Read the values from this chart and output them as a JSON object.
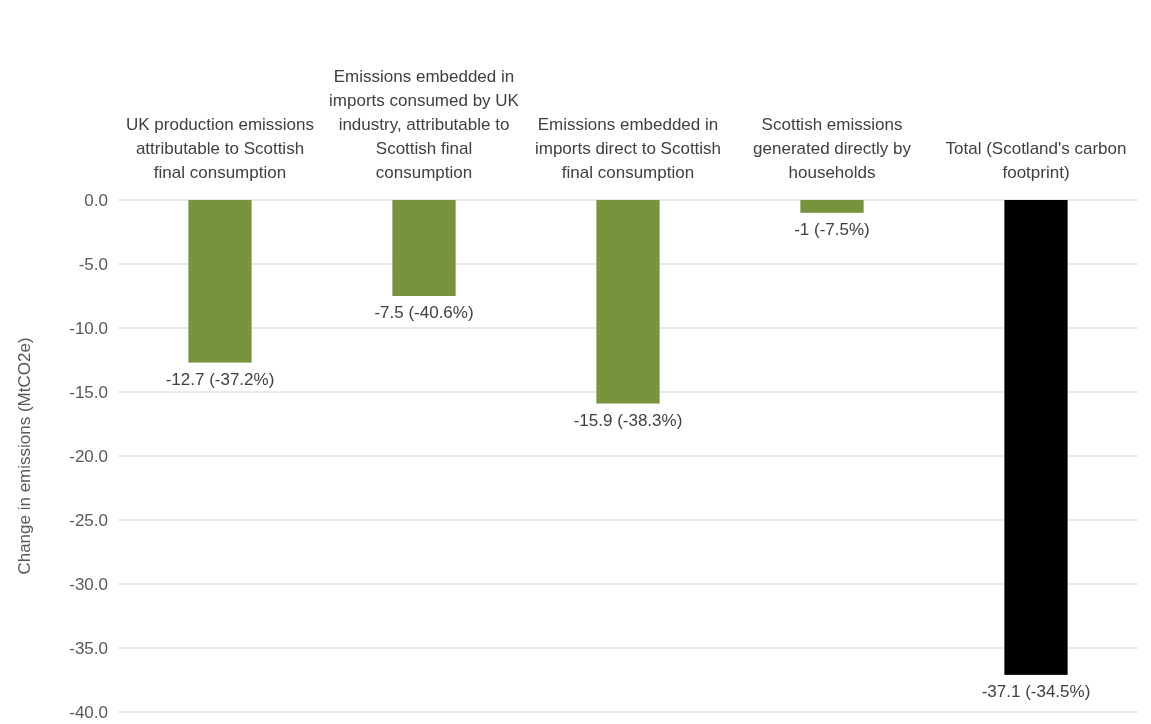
{
  "chart_data": {
    "type": "bar",
    "ylabel": "Change in emissions (MtCO2e)",
    "categories": [
      "UK production emissions attributable to Scottish final consumption",
      "Emissions embedded in imports consumed by UK industry, attributable to Scottish final consumption",
      "Emissions embedded in imports direct to Scottish final consumption",
      "Scottish emissions generated directly by households",
      "Total (Scotland's carbon footprint)"
    ],
    "values": [
      -12.7,
      -7.5,
      -15.9,
      -1,
      -37.1
    ],
    "colors": [
      "#77933c",
      "#77933c",
      "#77933c",
      "#77933c",
      "#000000"
    ],
    "value_labels": [
      "-12.7 (-37.2%)",
      "-7.5 (-40.6%)",
      "-15.9 (-38.3%)",
      "-1 (-7.5%)",
      "-37.1 (-34.5%)"
    ],
    "ylim": [
      -40,
      0
    ],
    "yticks": [
      {
        "value": 0,
        "label": "0.0"
      },
      {
        "value": -5,
        "label": "-5.0"
      },
      {
        "value": -10,
        "label": "-10.0"
      },
      {
        "value": -15,
        "label": "-15.0"
      },
      {
        "value": -20,
        "label": "-20.0"
      },
      {
        "value": -25,
        "label": "-25.0"
      },
      {
        "value": -30,
        "label": "-30.0"
      },
      {
        "value": -35,
        "label": "-35.0"
      },
      {
        "value": -40,
        "label": "-40.0"
      }
    ],
    "grid": "y"
  }
}
